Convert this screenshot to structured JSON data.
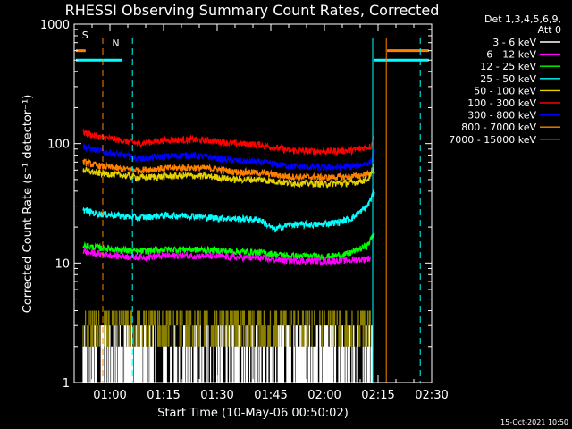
{
  "chart_data": {
    "type": "line",
    "title": "RHESSI Observing Summary Count Rates, Corrected",
    "xlabel": "Start Time (10-May-06 00:50:02)",
    "ylabel": "Corrected Count Rate (s⁻¹ detector⁻¹)",
    "yscale": "log",
    "ylim": [
      1,
      1000
    ],
    "xlim_minutes": [
      50,
      150
    ],
    "x_ticks": [
      {
        "m": 60,
        "label": "01:00"
      },
      {
        "m": 75,
        "label": "01:15"
      },
      {
        "m": 90,
        "label": "01:30"
      },
      {
        "m": 105,
        "label": "01:45"
      },
      {
        "m": 120,
        "label": "02:00"
      },
      {
        "m": 135,
        "label": "02:15"
      },
      {
        "m": 150,
        "label": "02:30"
      }
    ],
    "y_ticks": [
      {
        "v": 1,
        "label": "1"
      },
      {
        "v": 10,
        "label": "10"
      },
      {
        "v": 100,
        "label": "100"
      },
      {
        "v": 1000,
        "label": "1000"
      }
    ],
    "legend_header": [
      "Det 1,3,4,5,6,9,",
      "Att 0"
    ],
    "series": [
      {
        "name": "3 - 6 keV",
        "color": "#ffffff"
      },
      {
        "name": "6 - 12 keV",
        "color": "#ff00ff"
      },
      {
        "name": "12 - 25 keV",
        "color": "#00ff00"
      },
      {
        "name": "25 - 50 keV",
        "color": "#00ffff"
      },
      {
        "name": "50 - 100 keV",
        "color": "#e6d200"
      },
      {
        "name": "100 - 300 keV",
        "color": "#ff0000"
      },
      {
        "name": "300 - 800 keV",
        "color": "#0000ff"
      },
      {
        "name": "800 - 7000 keV",
        "color": "#ff8000"
      },
      {
        "name": "7000 - 15000 keV",
        "color": "#8c8000"
      }
    ],
    "profiles": [
      {
        "series": "100 - 300 keV",
        "points": [
          [
            52.5,
            125
          ],
          [
            56,
            115
          ],
          [
            62,
            108
          ],
          [
            68,
            100
          ],
          [
            75,
            107
          ],
          [
            82,
            108
          ],
          [
            88,
            106
          ],
          [
            95,
            100
          ],
          [
            102,
            98
          ],
          [
            110,
            88
          ],
          [
            120,
            86
          ],
          [
            128,
            88
          ],
          [
            133,
            95
          ],
          [
            134,
            120
          ]
        ]
      },
      {
        "series": "300 - 800 keV",
        "points": [
          [
            52.5,
            95
          ],
          [
            56,
            88
          ],
          [
            62,
            82
          ],
          [
            68,
            75
          ],
          [
            75,
            78
          ],
          [
            82,
            80
          ],
          [
            88,
            77
          ],
          [
            95,
            72
          ],
          [
            102,
            70
          ],
          [
            110,
            65
          ],
          [
            120,
            63
          ],
          [
            128,
            64
          ],
          [
            133,
            70
          ],
          [
            134,
            85
          ]
        ]
      },
      {
        "series": "800 - 7000 keV",
        "points": [
          [
            52.5,
            70
          ],
          [
            56,
            66
          ],
          [
            62,
            62
          ],
          [
            68,
            60
          ],
          [
            75,
            62
          ],
          [
            82,
            63
          ],
          [
            88,
            62
          ],
          [
            95,
            58
          ],
          [
            102,
            57
          ],
          [
            110,
            53
          ],
          [
            120,
            52
          ],
          [
            128,
            53
          ],
          [
            133,
            56
          ],
          [
            134,
            70
          ]
        ]
      },
      {
        "series": "50 - 100 keV",
        "points": [
          [
            52.5,
            60
          ],
          [
            56,
            57
          ],
          [
            62,
            55
          ],
          [
            68,
            52
          ],
          [
            75,
            53
          ],
          [
            82,
            54
          ],
          [
            88,
            53
          ],
          [
            95,
            50
          ],
          [
            102,
            50
          ],
          [
            110,
            47
          ],
          [
            120,
            46
          ],
          [
            128,
            47
          ],
          [
            132,
            50
          ],
          [
            134,
            60
          ]
        ]
      },
      {
        "series": "25 - 50 keV",
        "points": [
          [
            52.5,
            28
          ],
          [
            56,
            26
          ],
          [
            62,
            25
          ],
          [
            68,
            24
          ],
          [
            75,
            25
          ],
          [
            82,
            25
          ],
          [
            88,
            24
          ],
          [
            95,
            23.5
          ],
          [
            102,
            23
          ],
          [
            106,
            19
          ],
          [
            110,
            21
          ],
          [
            118,
            21
          ],
          [
            124,
            22
          ],
          [
            128,
            24
          ],
          [
            132,
            30
          ],
          [
            134,
            40
          ]
        ]
      },
      {
        "series": "12 - 25 keV",
        "points": [
          [
            52.5,
            14
          ],
          [
            56,
            13.5
          ],
          [
            62,
            13
          ],
          [
            68,
            12.5
          ],
          [
            75,
            13
          ],
          [
            82,
            13
          ],
          [
            88,
            12.8
          ],
          [
            95,
            12.5
          ],
          [
            102,
            12.3
          ],
          [
            110,
            11.5
          ],
          [
            120,
            11.3
          ],
          [
            126,
            11.8
          ],
          [
            132,
            14
          ],
          [
            134,
            18
          ]
        ]
      },
      {
        "series": "6 - 12 keV",
        "points": [
          [
            52.5,
            12.5
          ],
          [
            56,
            12
          ],
          [
            62,
            11.5
          ],
          [
            68,
            11.2
          ],
          [
            75,
            11.5
          ],
          [
            82,
            11.6
          ],
          [
            88,
            11.4
          ],
          [
            95,
            11.2
          ],
          [
            102,
            11
          ],
          [
            110,
            10.5
          ],
          [
            120,
            10.4
          ],
          [
            128,
            10.6
          ],
          [
            133,
            11
          ]
        ]
      }
    ],
    "annotations": [
      {
        "label": "S",
        "color": "#ff8000"
      },
      {
        "label": "N",
        "color": "#00ffff"
      }
    ]
  },
  "timestamp": "15-Oct-2021 10:50"
}
